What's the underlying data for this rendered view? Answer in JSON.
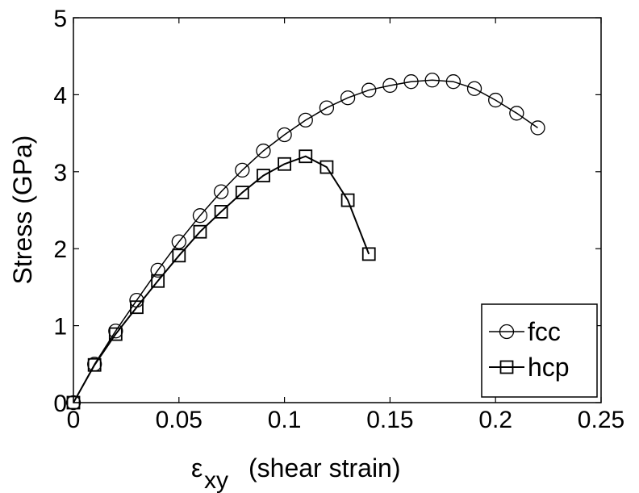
{
  "chart_data": {
    "type": "line",
    "xlabel": "(shear strain)",
    "xlabel_symbol": "ε",
    "xlabel_subscript": "xy",
    "ylabel": "Stress (GPa)",
    "xlim": [
      0,
      0.25
    ],
    "ylim": [
      0,
      5
    ],
    "xticks": [
      "0",
      "0.05",
      "0.1",
      "0.15",
      "0.2",
      "0.25"
    ],
    "xtick_values": [
      0,
      0.05,
      0.1,
      0.15,
      0.2,
      0.25
    ],
    "yticks": [
      "0",
      "1",
      "2",
      "3",
      "4",
      "5"
    ],
    "ytick_values": [
      0,
      1,
      2,
      3,
      4,
      5
    ],
    "grid": false,
    "legend_position": "bottom-right",
    "series": [
      {
        "name": "fcc",
        "marker": "circle",
        "color": "#000000",
        "x": [
          0,
          0.01,
          0.02,
          0.03,
          0.04,
          0.05,
          0.06,
          0.07,
          0.08,
          0.09,
          0.1,
          0.11,
          0.12,
          0.13,
          0.14,
          0.15,
          0.16,
          0.17,
          0.18,
          0.19,
          0.2,
          0.21,
          0.22
        ],
        "y": [
          0,
          0.5,
          0.93,
          1.33,
          1.72,
          2.09,
          2.43,
          2.74,
          3.02,
          3.27,
          3.48,
          3.67,
          3.83,
          3.96,
          4.06,
          4.12,
          4.17,
          4.19,
          4.17,
          4.08,
          3.93,
          3.76,
          3.57
        ]
      },
      {
        "name": "hcp",
        "marker": "square",
        "color": "#000000",
        "x": [
          0,
          0.01,
          0.02,
          0.03,
          0.04,
          0.05,
          0.06,
          0.07,
          0.08,
          0.09,
          0.1,
          0.11,
          0.12,
          0.13,
          0.14
        ],
        "y": [
          0,
          0.49,
          0.89,
          1.24,
          1.58,
          1.91,
          2.22,
          2.48,
          2.73,
          2.95,
          3.1,
          3.2,
          3.06,
          2.63,
          1.93
        ]
      }
    ]
  }
}
